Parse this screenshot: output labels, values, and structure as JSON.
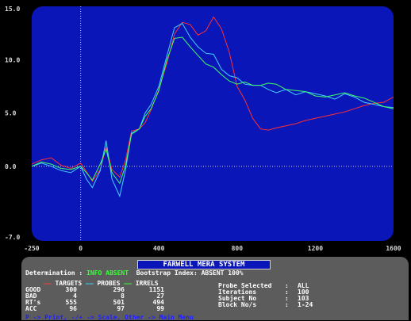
{
  "chart_data": {
    "type": "line",
    "xlim": [
      -250,
      1600
    ],
    "ylim": [
      -7,
      15
    ],
    "xticks": [
      "-250",
      "0",
      "400",
      "800",
      "1200",
      "1600"
    ],
    "yticks": [
      "15.0",
      "10.0",
      "5.0",
      "0.0",
      "-7.0"
    ],
    "grid": false,
    "series": [
      {
        "name": "TARGETS",
        "color": "#ff3030",
        "x": [
          -250,
          -200,
          -150,
          -100,
          -50,
          0,
          30,
          60,
          100,
          130,
          160,
          200,
          230,
          260,
          300,
          330,
          360,
          400,
          440,
          480,
          520,
          560,
          600,
          640,
          680,
          720,
          760,
          800,
          840,
          880,
          920,
          960,
          1000,
          1050,
          1100,
          1150,
          1200,
          1250,
          1300,
          1350,
          1400,
          1450,
          1500,
          1550,
          1600
        ],
        "y": [
          0.2,
          0.6,
          0.8,
          0.1,
          -0.2,
          0.3,
          -0.5,
          -1.4,
          -0.3,
          1.8,
          -0.3,
          -1.0,
          0.6,
          3.3,
          3.5,
          4.1,
          5.3,
          7.2,
          9.6,
          12.4,
          13.5,
          13.3,
          12.3,
          12.7,
          14.0,
          12.9,
          10.7,
          7.5,
          6.2,
          4.5,
          3.5,
          3.4,
          3.6,
          3.8,
          4.0,
          4.3,
          4.5,
          4.7,
          4.9,
          5.1,
          5.4,
          5.7,
          5.9,
          6.0,
          6.5
        ]
      },
      {
        "name": "PROBES",
        "color": "#40d0ff",
        "x": [
          -250,
          -200,
          -150,
          -100,
          -50,
          0,
          30,
          60,
          100,
          130,
          160,
          200,
          230,
          260,
          300,
          330,
          360,
          400,
          440,
          480,
          520,
          560,
          600,
          640,
          680,
          720,
          760,
          800,
          840,
          880,
          920,
          960,
          1000,
          1050,
          1100,
          1150,
          1200,
          1250,
          1300,
          1350,
          1400,
          1450,
          1500,
          1550,
          1600
        ],
        "y": [
          0.0,
          0.3,
          0.0,
          -0.4,
          -0.6,
          0.0,
          -1.2,
          -2.0,
          -0.4,
          2.4,
          -1.2,
          -2.8,
          -0.3,
          3.1,
          3.5,
          5.0,
          5.8,
          7.5,
          10.3,
          13.0,
          13.4,
          12.1,
          11.2,
          10.6,
          10.5,
          9.1,
          8.5,
          8.3,
          7.7,
          7.6,
          7.6,
          7.2,
          6.9,
          7.2,
          6.7,
          7.0,
          6.8,
          6.6,
          6.3,
          6.8,
          6.5,
          6.0,
          5.8,
          5.6,
          5.5
        ]
      },
      {
        "name": "IRRELS",
        "color": "#40ff60",
        "x": [
          -250,
          -200,
          -150,
          -100,
          -50,
          0,
          30,
          60,
          100,
          130,
          160,
          200,
          230,
          260,
          300,
          330,
          360,
          400,
          440,
          480,
          520,
          560,
          600,
          640,
          680,
          720,
          760,
          800,
          840,
          880,
          920,
          960,
          1000,
          1050,
          1100,
          1150,
          1200,
          1250,
          1300,
          1350,
          1400,
          1450,
          1500,
          1550,
          1600
        ],
        "y": [
          0.0,
          0.4,
          0.2,
          -0.2,
          -0.3,
          0.0,
          -0.6,
          -1.3,
          0.2,
          1.6,
          -0.6,
          -1.6,
          0.1,
          3.0,
          3.5,
          4.7,
          5.4,
          7.1,
          9.9,
          12.0,
          12.1,
          11.2,
          10.4,
          9.6,
          9.3,
          8.6,
          8.0,
          7.7,
          7.9,
          7.6,
          7.6,
          7.8,
          7.7,
          7.2,
          7.1,
          7.0,
          6.6,
          6.5,
          6.7,
          6.9,
          6.6,
          6.4,
          6.0,
          5.6,
          5.4
        ]
      }
    ]
  },
  "panel": {
    "title": "FARWELL MERA SYSTEM",
    "determination_label": "Determination :",
    "determination_value": "INFO ABSENT",
    "bootstrap_label": "Bootstrap Index:",
    "bootstrap_value": "ABSENT 100%",
    "col_targets": "TARGETS",
    "col_probes": "PROBES",
    "col_irrels": "IRRELS",
    "rows": [
      {
        "label": "GOOD",
        "targets": "300",
        "probes": "296",
        "irrels": "1151"
      },
      {
        "label": "BAD",
        "targets": "4",
        "probes": "8",
        "irrels": "27"
      },
      {
        "label": "RT's",
        "targets": "555",
        "probes": "501",
        "irrels": "494"
      },
      {
        "label": "ACC",
        "targets": "96",
        "probes": "97",
        "irrels": "99"
      }
    ],
    "info": [
      {
        "label": "Probe Selected",
        "value": "ALL"
      },
      {
        "label": "Iterations",
        "value": "100"
      },
      {
        "label": "Subject No",
        "value": "103"
      },
      {
        "label": "Block No/s",
        "value": "1-24"
      }
    ],
    "footer": "P -> Print, -/+ -> Scale, Other -> Main Menu"
  }
}
